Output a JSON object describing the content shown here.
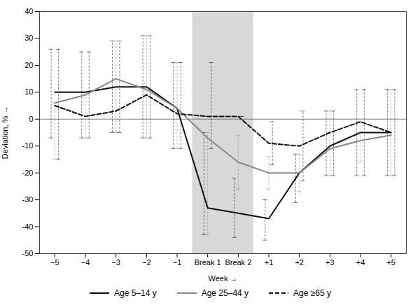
{
  "chart_data": {
    "type": "line",
    "xlabel": "Week",
    "ylabel": "Deviation, %",
    "categories": [
      "−5",
      "−4",
      "−3",
      "−2",
      "−1",
      "Break 1",
      "Break 2",
      "+1",
      "+2",
      "+3",
      "+4",
      "+5"
    ],
    "series": [
      {
        "name": "Age 5–14 y",
        "color": "#111111",
        "line_style": "solid",
        "values": [
          10,
          10,
          12,
          12,
          4,
          -33,
          -35,
          -37,
          -20,
          -10,
          -5,
          -5
        ],
        "ci_upper": [
          26,
          25,
          29,
          31,
          21,
          -5,
          -22,
          -30,
          -13,
          3,
          11,
          11
        ],
        "ci_lower": [
          -7,
          -7,
          -5,
          -7,
          -11,
          -43,
          -44,
          -45,
          -31,
          -21,
          -21,
          -21
        ]
      },
      {
        "name": "Age 25–44 y",
        "color": "#888888",
        "line_style": "solid",
        "values": [
          6,
          9,
          15,
          11,
          4,
          -7,
          -16,
          -20,
          -20,
          -11,
          -8,
          -6
        ],
        "ci_upper": [
          6,
          9,
          29,
          31,
          21,
          -5,
          -6,
          -14,
          -13,
          3,
          -1,
          11
        ],
        "ci_lower": [
          -15,
          -7,
          -5,
          -7,
          -11,
          -43,
          -26,
          -26,
          -27,
          -21,
          -16,
          -21
        ]
      },
      {
        "name": "Age ≥65 y",
        "color": "#111111",
        "line_style": "dashed",
        "values": [
          5,
          1,
          3,
          9,
          2,
          1,
          1,
          -9,
          -10,
          -5,
          -1,
          -5
        ],
        "ci_upper": [
          26,
          25,
          29,
          31,
          21,
          21,
          1,
          -1,
          3,
          3,
          11,
          11
        ],
        "ci_lower": [
          -15,
          -7,
          -5,
          -7,
          -11,
          -11,
          1,
          -17,
          -23,
          -21,
          -21,
          -21
        ]
      }
    ],
    "shaded_region": {
      "categories": [
        "Break 1",
        "Break 2"
      ],
      "color": "#d8d8d8"
    },
    "ylim": [
      -50,
      40
    ],
    "yticks": [
      -50,
      -40,
      -30,
      -20,
      -10,
      0,
      10,
      20,
      30,
      40
    ],
    "grid": false,
    "legend": "bottom"
  }
}
